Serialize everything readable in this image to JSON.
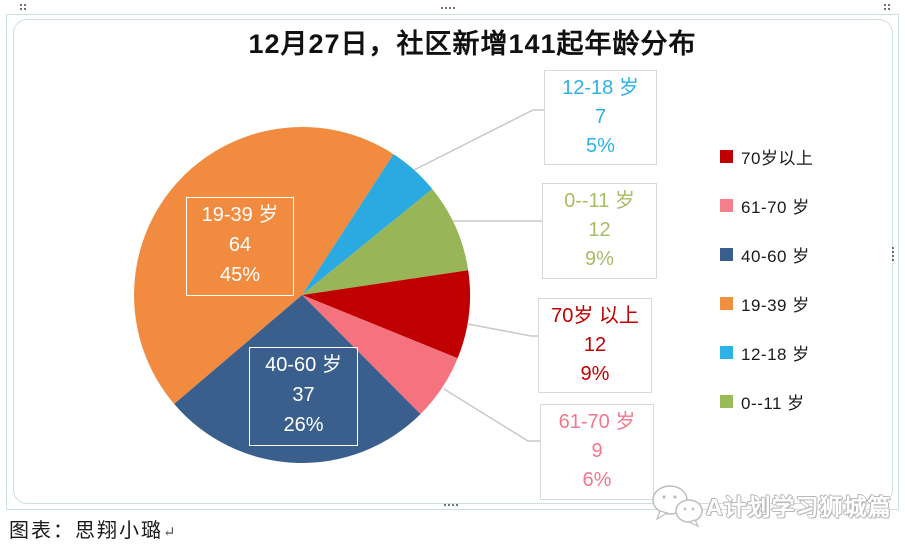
{
  "title": "12月27日，社区新增141起年龄分布",
  "chart_data": {
    "type": "pie",
    "title": "12月27日，社区新增141起年龄分布",
    "total": 141,
    "start_angle_deg": 33,
    "direction": "clockwise",
    "legend_position": "right",
    "slices": [
      {
        "label": "12-18 岁",
        "value": 7,
        "pct": "5%",
        "color": "#2ba9e1"
      },
      {
        "label": "0--11 岁",
        "value": 12,
        "pct": "9%",
        "color": "#98b657"
      },
      {
        "label": "70岁 以上",
        "value": 12,
        "pct": "9%",
        "color": "#c00000"
      },
      {
        "label": "61-70 岁",
        "value": 9,
        "pct": "6%",
        "color": "#f4737f"
      },
      {
        "label": "40-60 岁",
        "value": 37,
        "pct": "26%",
        "color": "#3a5f8c"
      },
      {
        "label": "19-39 岁",
        "value": 64,
        "pct": "45%",
        "color": "#f08b40"
      }
    ]
  },
  "pie_labels": [
    {
      "line1": "19-39 岁",
      "line2": "64",
      "line3": "45%"
    },
    {
      "line1": "40-60 岁",
      "line2": "37",
      "line3": "26%"
    }
  ],
  "callouts": [
    {
      "line1": "12-18 岁",
      "line2": "7",
      "line3": "5%"
    },
    {
      "line1": "0--11 岁",
      "line2": "12",
      "line3": "9%"
    },
    {
      "line1": "70岁 以上",
      "line2": "12",
      "line3": "9%"
    },
    {
      "line1": "61-70 岁",
      "line2": "9",
      "line3": "6%"
    }
  ],
  "legend": {
    "items": [
      {
        "label": "70岁以上",
        "color": "#c00000"
      },
      {
        "label": "61-70 岁",
        "color": "#f4808c"
      },
      {
        "label": "40-60 岁",
        "color": "#3a5f8c"
      },
      {
        "label": "19-39 岁",
        "color": "#f0903f"
      },
      {
        "label": "12-18 岁",
        "color": "#2eb3e8"
      },
      {
        "label": "0--11 岁",
        "color": "#9bbb59"
      }
    ]
  },
  "caption": {
    "text": "图表：思翔小璐",
    "return_mark": "↵"
  },
  "watermark": {
    "text": "A计划学习狮城篇",
    "icon": "wechat-icon"
  }
}
